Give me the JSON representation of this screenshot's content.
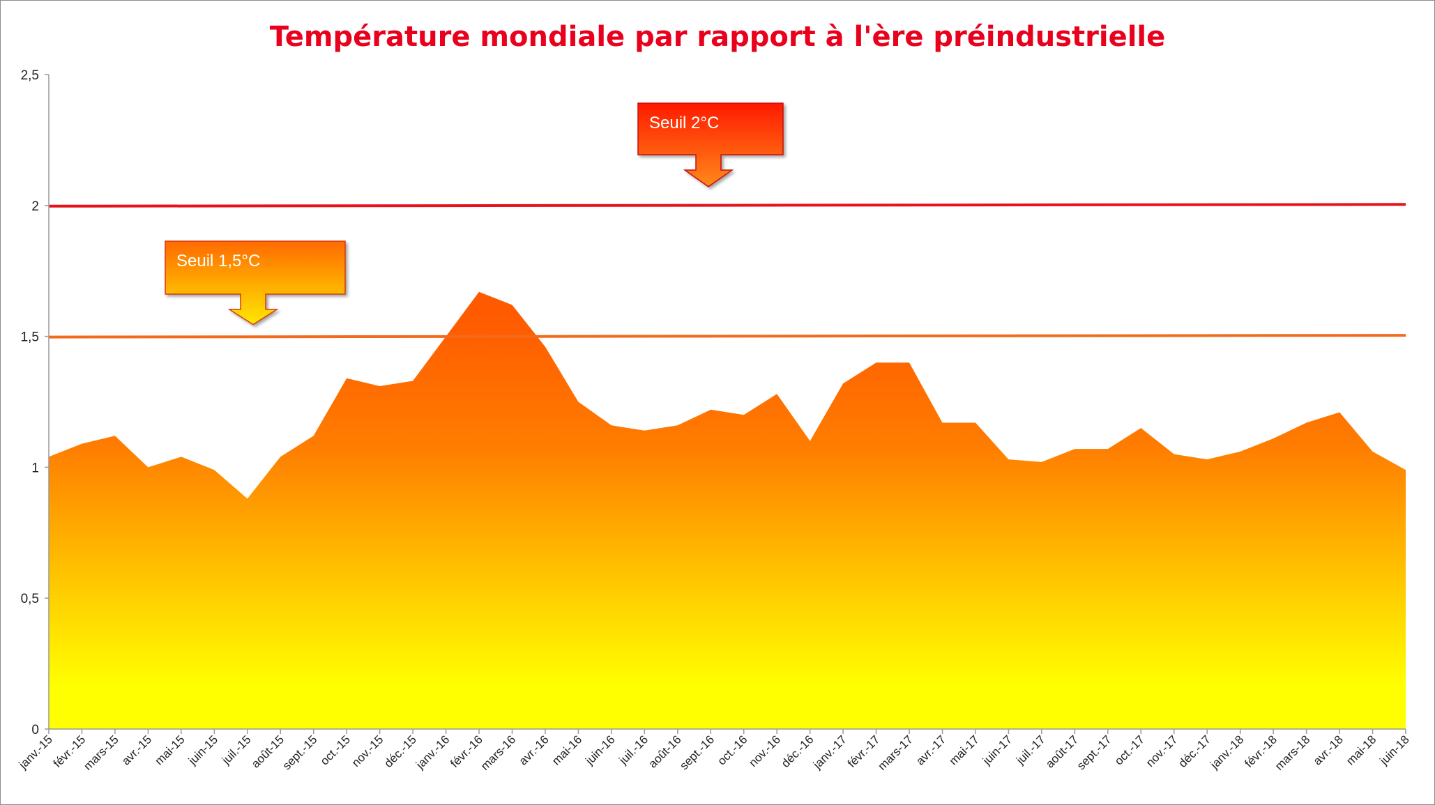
{
  "chart_data": {
    "type": "area",
    "title": "Température mondiale par rapport à l'ère préindustrielle",
    "xlabel": "",
    "ylabel": "",
    "ylim": [
      0,
      2.5
    ],
    "yticks": [
      "0",
      "0,5",
      "1",
      "1,5",
      "2",
      "2,5"
    ],
    "grid": false,
    "categories": [
      "janv.-15",
      "févr.-15",
      "mars-15",
      "avr.-15",
      "mai-15",
      "juin-15",
      "juil.-15",
      "août-15",
      "sept.-15",
      "oct.-15",
      "nov.-15",
      "déc.-15",
      "janv.-16",
      "févr.-16",
      "mars-16",
      "avr.-16",
      "mai-16",
      "juin-16",
      "juil.-16",
      "août-16",
      "sept.-16",
      "oct.-16",
      "nov.-16",
      "déc.-16",
      "janv.-17",
      "févr.-17",
      "mars-17",
      "avr.-17",
      "mai-17",
      "juin-17",
      "juil.-17",
      "août-17",
      "sept.-17",
      "oct.-17",
      "nov.-17",
      "déc.-17",
      "janv.-18",
      "févr.-18",
      "mars-18",
      "avr.-18",
      "mai-18",
      "juin-18"
    ],
    "series": [
      {
        "name": "",
        "values": [
          1.04,
          1.09,
          1.12,
          1.0,
          1.04,
          0.99,
          0.88,
          1.04,
          1.12,
          1.34,
          1.31,
          1.33,
          1.5,
          1.67,
          1.62,
          1.46,
          1.25,
          1.16,
          1.14,
          1.16,
          1.22,
          1.2,
          1.28,
          1.1,
          1.32,
          1.4,
          1.4,
          1.17,
          1.17,
          1.03,
          1.02,
          1.07,
          1.07,
          1.15,
          1.05,
          1.03,
          1.06,
          1.11,
          1.17,
          1.21,
          1.06,
          0.99
        ]
      }
    ],
    "thresholds": [
      {
        "value": 2.0,
        "label": "Seuil 2°C",
        "color": "#e8101a"
      },
      {
        "value": 1.5,
        "label": "Seuil 1,5°C",
        "color": "#f26a1b"
      }
    ],
    "colors": {
      "title": "#e8001c",
      "area_top": "#ff5a00",
      "area_bottom": "#ffff00",
      "axis": "#999999"
    }
  }
}
